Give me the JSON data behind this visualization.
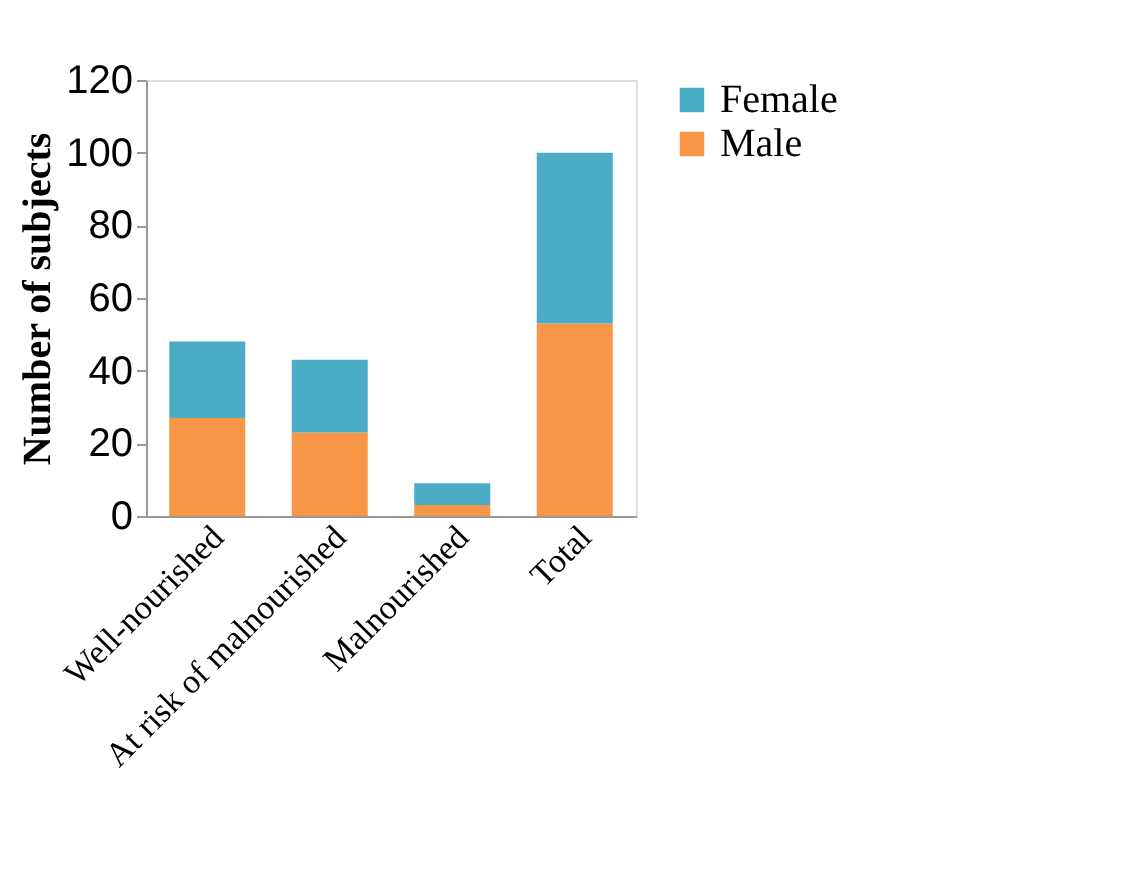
{
  "chart_data": {
    "type": "bar",
    "stacked": true,
    "ylabel": "Number of subjects",
    "categories": [
      "Well-nourished",
      "At risk of malnourished",
      "Malnourished",
      "Total"
    ],
    "series": [
      {
        "name": "Male",
        "color": "#f79646",
        "values": [
          27,
          23,
          3,
          53
        ]
      },
      {
        "name": "Female",
        "color": "#4bacc6",
        "values": [
          21,
          20,
          6,
          47
        ]
      }
    ],
    "ylim": [
      0,
      120
    ],
    "yticks": [
      0,
      20,
      40,
      60,
      80,
      100,
      120
    ],
    "grid": false,
    "legend": "right"
  }
}
